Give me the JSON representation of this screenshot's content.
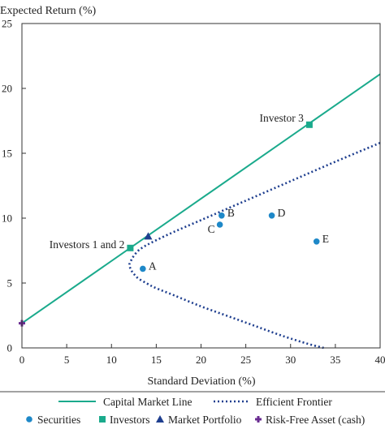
{
  "chart_data": {
    "type": "scatter",
    "title": "",
    "xlabel": "Standard Deviation (%)",
    "ylabel": "Expected Return (%)",
    "xlim": [
      0,
      40
    ],
    "ylim": [
      0,
      25
    ],
    "xticks": [
      0,
      5,
      10,
      15,
      20,
      25,
      30,
      35,
      40
    ],
    "yticks": [
      0,
      5,
      10,
      15,
      20,
      25
    ],
    "grid": false,
    "colors": {
      "teal": "#1aaa8c",
      "navy": "#1f3f8f",
      "blue": "#1e88c8",
      "purple": "#6a2c91",
      "axis": "#333333"
    },
    "capital_market_line": {
      "name": "Capital Market Line",
      "x": [
        0,
        40
      ],
      "y": [
        1.9,
        21.1
      ]
    },
    "efficient_frontier": {
      "name": "Efficient Frontier",
      "x": [
        40,
        35,
        30,
        25,
        20,
        17,
        15,
        14,
        13.5,
        13,
        12.5,
        12.2,
        12,
        12.2,
        12.5,
        13,
        14,
        15,
        17,
        20,
        23,
        26,
        29,
        32,
        33.7
      ],
      "y": [
        15.8,
        14.35,
        12.85,
        11.35,
        9.85,
        8.95,
        8.3,
        7.95,
        7.75,
        7.5,
        7.1,
        6.75,
        6.4,
        6.0,
        5.7,
        5.35,
        4.95,
        4.6,
        4.05,
        3.2,
        2.45,
        1.7,
        0.95,
        0.3,
        0.0
      ]
    },
    "securities": {
      "name": "Securities",
      "points": [
        {
          "label": "A",
          "x": 13.5,
          "y": 6.1
        },
        {
          "label": "B",
          "x": 22.3,
          "y": 10.2
        },
        {
          "label": "C",
          "x": 22.1,
          "y": 9.5
        },
        {
          "label": "D",
          "x": 27.9,
          "y": 10.2
        },
        {
          "label": "E",
          "x": 32.9,
          "y": 8.2
        }
      ]
    },
    "investors": {
      "name": "Investors",
      "points": [
        {
          "label": "Investors 1 and 2",
          "x": 12.1,
          "y": 7.7
        },
        {
          "label": "Investor 3",
          "x": 32.1,
          "y": 17.2
        }
      ]
    },
    "market_portfolio": {
      "name": "Market Portfolio",
      "x": 14.1,
      "y": 8.6
    },
    "risk_free_asset": {
      "name": "Risk-Free Asset (cash)",
      "x": 0,
      "y": 1.9
    },
    "legend": {
      "placement": "bottom",
      "line_items": [
        "Capital Market Line",
        "Efficient Frontier"
      ],
      "marker_items": [
        "Securities",
        "Investors",
        "Market Portfolio",
        "Risk-Free Asset (cash)"
      ]
    }
  }
}
